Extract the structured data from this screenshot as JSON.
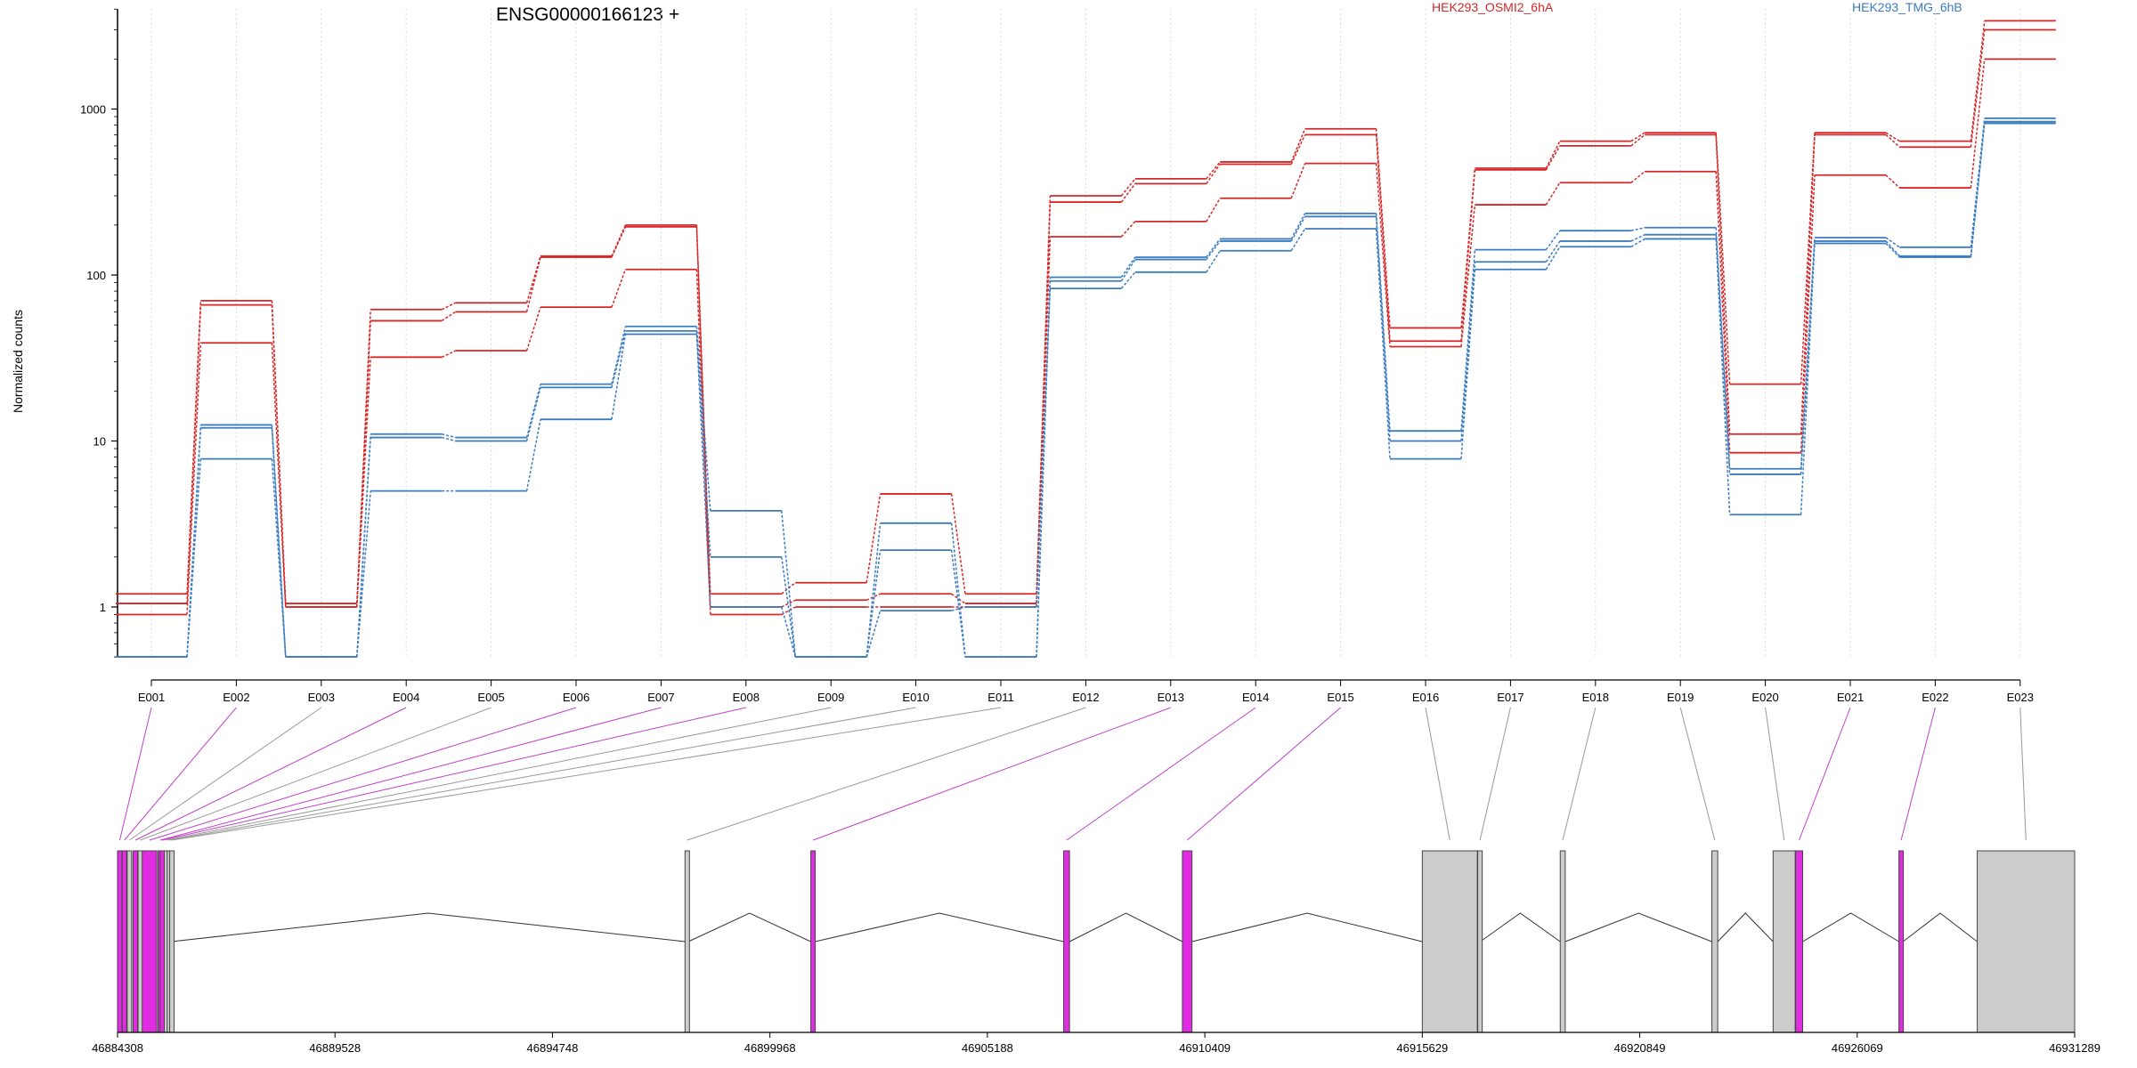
{
  "chart_data": {
    "type": "line",
    "title": "ENSG00000166123 +",
    "ylabel": "Normalized counts",
    "yscale": "log",
    "ylim": [
      0.5,
      4000
    ],
    "yticks": [
      1,
      10,
      100,
      1000
    ],
    "ytick_labels": [
      "1",
      "10",
      "100",
      "1000"
    ],
    "grid": "vertical dotted",
    "legend_position": "top",
    "categories": [
      "E001",
      "E002",
      "E003",
      "E004",
      "E005",
      "E006",
      "E007",
      "E008",
      "E009",
      "E010",
      "E011",
      "E012",
      "E013",
      "E014",
      "E015",
      "E016",
      "E017",
      "E018",
      "E019",
      "E020",
      "E021",
      "E022",
      "E023"
    ],
    "legend": [
      {
        "label": "HEK293_OSMI2_6hA",
        "color": "#d62728"
      },
      {
        "label": "HEK293_TMG_6hB",
        "color": "#3b7cc0"
      }
    ],
    "series": [
      {
        "group": "red",
        "color": "#d62728",
        "values": [
          1.2,
          70,
          1.05,
          62,
          68,
          130,
          200,
          1.2,
          1.4,
          4.8,
          1.2,
          300,
          380,
          480,
          760,
          48,
          440,
          640,
          720,
          22,
          720,
          640,
          3400
        ]
      },
      {
        "group": "red",
        "color": "#d62728",
        "values": [
          1.05,
          66,
          1.0,
          53,
          60,
          128,
          195,
          1.0,
          1.1,
          1.2,
          1.05,
          275,
          355,
          465,
          700,
          40,
          430,
          600,
          700,
          11,
          700,
          590,
          3000
        ]
      },
      {
        "group": "red",
        "color": "#d62728",
        "values": [
          0.9,
          39,
          1.0,
          32,
          35,
          64,
          108,
          0.9,
          1.0,
          1.0,
          1.0,
          170,
          210,
          290,
          470,
          37,
          265,
          360,
          420,
          8.5,
          400,
          335,
          2000
        ]
      },
      {
        "group": "blue",
        "color": "#3b7cc0",
        "values": [
          0.5,
          12.5,
          0.5,
          11,
          10.5,
          22,
          49,
          3.8,
          0.5,
          3.2,
          0.5,
          97,
          128,
          165,
          235,
          11.5,
          142,
          185,
          193,
          6.8,
          168,
          147,
          880
        ]
      },
      {
        "group": "blue",
        "color": "#3b7cc0",
        "values": [
          0.5,
          12.0,
          0.5,
          10.5,
          10.0,
          21,
          46,
          2.0,
          0.5,
          2.2,
          0.5,
          92,
          124,
          160,
          225,
          10.0,
          120,
          160,
          175,
          6.3,
          160,
          130,
          840
        ]
      },
      {
        "group": "blue",
        "color": "#3b7cc0",
        "values": [
          0.5,
          7.8,
          0.5,
          5.0,
          5.0,
          13.5,
          44,
          1.0,
          0.5,
          0.95,
          1.0,
          83,
          104,
          140,
          190,
          7.8,
          108,
          148,
          165,
          3.6,
          155,
          128,
          820
        ]
      }
    ],
    "gene_model": {
      "xlim": [
        46884308,
        46931289
      ],
      "tick_labels": [
        "46884308",
        "46889528",
        "46894748",
        "46899968",
        "46905188",
        "46910409",
        "46915629",
        "46920849",
        "46926069",
        "46931289"
      ],
      "exons": [
        {
          "id": "E001",
          "start": 46884308,
          "end": 46884400,
          "highlight": true
        },
        {
          "id": "E002",
          "start": 46884420,
          "end": 46884520,
          "highlight": true
        },
        {
          "id": "E003",
          "start": 46884540,
          "end": 46884640,
          "highlight": false
        },
        {
          "id": "E004",
          "start": 46884680,
          "end": 46884790,
          "highlight": true
        },
        {
          "id": "E005",
          "start": 46884800,
          "end": 46884880,
          "highlight": false
        },
        {
          "id": "E006",
          "start": 46884900,
          "end": 46885250,
          "highlight": true
        },
        {
          "id": "E007",
          "start": 46885280,
          "end": 46885300,
          "highlight": true
        },
        {
          "id": "E008",
          "start": 46885330,
          "end": 46885400,
          "highlight": true
        },
        {
          "id": "E009",
          "start": 46885430,
          "end": 46885480,
          "highlight": false
        },
        {
          "id": "E010",
          "start": 46885500,
          "end": 46885540,
          "highlight": false
        },
        {
          "id": "E011",
          "start": 46885560,
          "end": 46885600,
          "highlight": false
        },
        {
          "id": "E012",
          "start": 46897930,
          "end": 46898010,
          "highlight": false
        },
        {
          "id": "E013",
          "start": 46900950,
          "end": 46901050,
          "highlight": true
        },
        {
          "id": "E014",
          "start": 46907020,
          "end": 46907160,
          "highlight": true
        },
        {
          "id": "E015",
          "start": 46909870,
          "end": 46910100,
          "highlight": true
        },
        {
          "id": "E016",
          "start": 46915629,
          "end": 46916950,
          "highlight": false
        },
        {
          "id": "E017",
          "start": 46916960,
          "end": 46917020,
          "highlight": false
        },
        {
          "id": "E018",
          "start": 46918940,
          "end": 46919060,
          "highlight": false
        },
        {
          "id": "E019",
          "start": 46922580,
          "end": 46922720,
          "highlight": false
        },
        {
          "id": "E020",
          "start": 46924050,
          "end": 46924580,
          "highlight": false
        },
        {
          "id": "E021",
          "start": 46924590,
          "end": 46924760,
          "highlight": true
        },
        {
          "id": "E022",
          "start": 46927070,
          "end": 46927170,
          "highlight": true
        },
        {
          "id": "E023",
          "start": 46928950,
          "end": 46931289,
          "highlight": false
        }
      ]
    }
  }
}
